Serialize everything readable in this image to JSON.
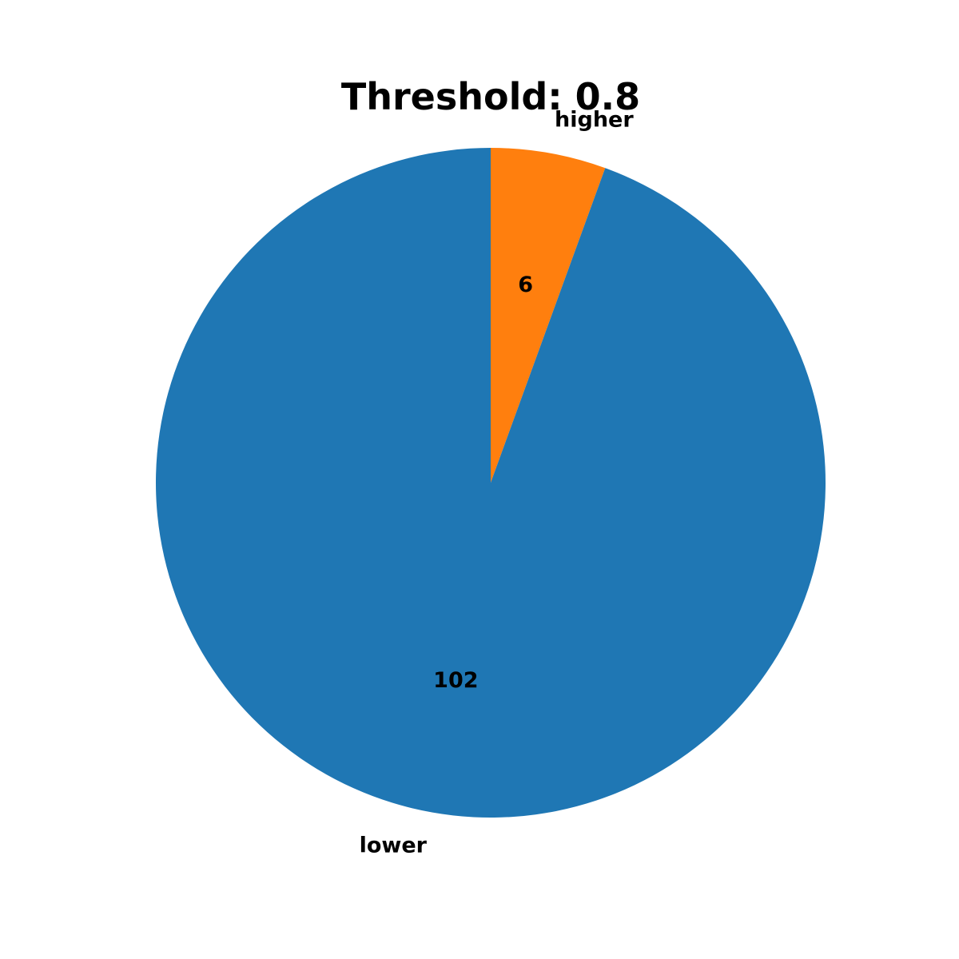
{
  "chart_data": {
    "type": "pie",
    "title": "Threshold: 0.8",
    "labels": [
      "higher",
      "lower"
    ],
    "values": [
      6,
      102
    ],
    "value_labels": [
      "6",
      "102"
    ],
    "colors": [
      "#ff7f0e",
      "#1f77b4"
    ],
    "start_angle": 90,
    "direction": "clockwise",
    "legend": "none"
  }
}
